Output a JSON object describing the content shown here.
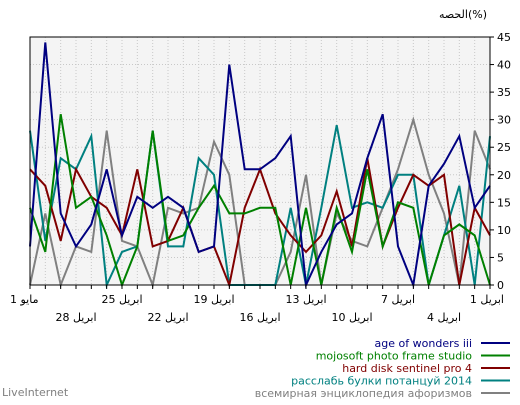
{
  "footer": "LiveInternet",
  "chart_data": {
    "type": "line",
    "ylabel": "الحصه(%)",
    "ylim": [
      0,
      45
    ],
    "yticks": [
      0,
      5,
      10,
      15,
      20,
      25,
      30,
      35,
      40,
      45
    ],
    "grid": true,
    "legend_position": "bottom",
    "x_count": 31,
    "x_ticks_row1": [
      {
        "i": 0,
        "label": "1 مايو"
      },
      {
        "i": 6,
        "label": "25 ابريل"
      },
      {
        "i": 12,
        "label": "19 ابريل"
      },
      {
        "i": 18,
        "label": "13 ابريل"
      },
      {
        "i": 24,
        "label": "7 ابريل"
      },
      {
        "i": 30,
        "label": "1 ابريل"
      }
    ],
    "x_ticks_row2": [
      {
        "i": 3,
        "label": "28 ابريل"
      },
      {
        "i": 9,
        "label": "22 ابريل"
      },
      {
        "i": 15,
        "label": "16 ابريل"
      },
      {
        "i": 21,
        "label": "10 ابريل"
      },
      {
        "i": 27,
        "label": "4 ابريل"
      }
    ],
    "series": [
      {
        "name": "age of wonders iii",
        "color": "#000080",
        "values": [
          7,
          44,
          13,
          7,
          11,
          21,
          9,
          16,
          14,
          16,
          14,
          6,
          7,
          40,
          21,
          21,
          23,
          27,
          0,
          6,
          11,
          13,
          23,
          31,
          7,
          0,
          18,
          22,
          27,
          14,
          18
        ]
      },
      {
        "name": "mojosoft photo frame studio",
        "color": "#008000",
        "values": [
          14,
          6,
          31,
          14,
          16,
          9,
          0,
          7,
          28,
          8,
          9,
          14,
          18,
          13,
          13,
          14,
          14,
          0,
          14,
          0,
          14,
          6,
          21,
          7,
          15,
          14,
          0,
          9,
          11,
          9,
          0
        ]
      },
      {
        "name": "hard disk sentinel pro 4",
        "color": "#800000",
        "values": [
          21,
          18,
          8,
          21,
          16,
          14,
          9,
          21,
          7,
          8,
          14,
          6,
          7,
          0,
          14,
          21,
          13,
          9,
          6,
          9,
          17,
          7,
          23,
          7,
          14,
          20,
          18,
          20,
          0,
          14,
          9
        ]
      },
      {
        "name": "расслабь булки потанцуй 2014",
        "color": "#008080",
        "values": [
          28,
          8,
          23,
          21,
          27,
          0,
          6,
          7,
          28,
          7,
          7,
          23,
          20,
          0,
          0,
          0,
          0,
          14,
          0,
          14,
          29,
          14,
          15,
          14,
          20,
          20,
          0,
          9,
          18,
          0,
          27
        ]
      },
      {
        "name": "всемирная энциклопедия афоризмов",
        "color": "#808080",
        "values": [
          0,
          13,
          0,
          7,
          6,
          28,
          8,
          7,
          0,
          14,
          13,
          14,
          26,
          20,
          0,
          0,
          0,
          6,
          20,
          0,
          13,
          8,
          7,
          14,
          21,
          30,
          20,
          13,
          0,
          28,
          21
        ]
      }
    ]
  }
}
